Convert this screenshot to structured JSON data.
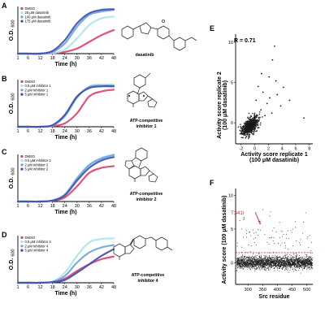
{
  "colors": {
    "dmso": "#d9406b",
    "low": "#a8e4ec",
    "mid": "#6ea3d8",
    "high": "#3c4fb0",
    "scatter_e": "#1a1a1a",
    "scatter_f": "#1a1a1a",
    "threshold": "#d23a3a",
    "arrow": "#c0392b"
  },
  "structures": [
    "dasatinib-structure-icon",
    "inhibitor-1-structure-icon",
    "inhibitor-2-structure-icon",
    "inhibitor-4-structure-icon"
  ],
  "panels": {
    "A": {
      "letter": "A",
      "compound_label": [
        "dasatinib"
      ]
    },
    "B": {
      "letter": "B",
      "compound_label": [
        "ATP-competitive",
        "inhibitor 1"
      ]
    },
    "C": {
      "letter": "C",
      "compound_label": [
        "ATP-competitive",
        "inhibitor 2"
      ]
    },
    "D": {
      "letter": "D",
      "compound_label": [
        "ATP-competitive",
        "inhibitor 4"
      ]
    },
    "E": {
      "letter": "E",
      "stat": "R = 0.71"
    },
    "F": {
      "letter": "F",
      "annotation": "T341I"
    }
  },
  "chart_data": [
    {
      "id": "A",
      "type": "line",
      "xlabel": "Time (h)",
      "ylabel": "O.D.",
      "ylabel_sub": "600",
      "xlim": [
        1,
        48
      ],
      "ylim": [
        0,
        1.4
      ],
      "xticks": [
        1,
        6,
        12,
        18,
        24,
        30,
        36,
        42,
        48
      ],
      "legend_placement": "top-left",
      "series": [
        {
          "name": "DMSO",
          "color_key": "dmso",
          "x": [
            1,
            6,
            12,
            18,
            24,
            30,
            36,
            42,
            48
          ],
          "y": [
            0,
            0,
            0,
            0.01,
            0.05,
            0.15,
            0.35,
            0.55,
            0.7
          ]
        },
        {
          "name": "25 μM dasatinib",
          "color_key": "low",
          "x": [
            1,
            6,
            12,
            18,
            24,
            30,
            36,
            42,
            48
          ],
          "y": [
            0,
            0,
            0,
            0.02,
            0.12,
            0.45,
            0.85,
            1.05,
            1.1
          ]
        },
        {
          "name": "100 μM dasatinib",
          "color_key": "mid",
          "x": [
            1,
            6,
            12,
            18,
            24,
            30,
            36,
            42,
            48
          ],
          "y": [
            0,
            0,
            0,
            0.05,
            0.3,
            0.8,
            1.15,
            1.25,
            1.3
          ]
        },
        {
          "name": "175 μM dasatinib",
          "color_key": "high",
          "x": [
            1,
            6,
            12,
            18,
            24,
            30,
            36,
            42,
            48
          ],
          "y": [
            0,
            0,
            0,
            0.08,
            0.4,
            0.9,
            1.2,
            1.3,
            1.32
          ]
        }
      ]
    },
    {
      "id": "B",
      "type": "line",
      "xlabel": "Time (h)",
      "ylabel": "O.D.",
      "ylabel_sub": "600",
      "xlim": [
        1,
        48
      ],
      "ylim": [
        0,
        1.4
      ],
      "xticks": [
        1,
        6,
        12,
        18,
        24,
        30,
        36,
        42,
        48
      ],
      "legend_placement": "top-left",
      "series": [
        {
          "name": "DMSO",
          "color_key": "dmso",
          "x": [
            1,
            6,
            12,
            18,
            24,
            30,
            36,
            42,
            48
          ],
          "y": [
            0,
            0,
            0,
            0.02,
            0.1,
            0.4,
            0.9,
            1.05,
            1.1
          ]
        },
        {
          "name": "0.5 μM inhibitor 1",
          "color_key": "low",
          "x": [
            1,
            6,
            12,
            18,
            24,
            30,
            36,
            42,
            48
          ],
          "y": [
            0,
            0,
            0,
            0.04,
            0.3,
            0.85,
            1.2,
            1.25,
            1.25
          ]
        },
        {
          "name": "2 μM inhibitor 1",
          "color_key": "mid",
          "x": [
            1,
            6,
            12,
            18,
            24,
            30,
            36,
            42,
            48
          ],
          "y": [
            0,
            0,
            0,
            0.04,
            0.32,
            0.88,
            1.18,
            1.22,
            1.22
          ]
        },
        {
          "name": "5 μM inhibitor 1",
          "color_key": "high",
          "x": [
            1,
            6,
            12,
            18,
            24,
            30,
            36,
            42,
            48
          ],
          "y": [
            0,
            0,
            0,
            0.05,
            0.35,
            0.9,
            1.15,
            1.2,
            1.2
          ]
        }
      ]
    },
    {
      "id": "C",
      "type": "line",
      "xlabel": "Time (h)",
      "ylabel": "O.D.",
      "ylabel_sub": "600",
      "xlim": [
        1,
        48
      ],
      "ylim": [
        0,
        1.4
      ],
      "xticks": [
        1,
        6,
        12,
        18,
        24,
        30,
        36,
        42,
        48
      ],
      "legend_placement": "top-left",
      "series": [
        {
          "name": "DMSO",
          "color_key": "dmso",
          "x": [
            1,
            6,
            12,
            18,
            24,
            30,
            36,
            42,
            48
          ],
          "y": [
            0,
            0,
            0,
            0.02,
            0.12,
            0.45,
            0.85,
            1.0,
            1.05
          ]
        },
        {
          "name": "0.5 μM inhibitor 2",
          "color_key": "low",
          "x": [
            1,
            6,
            12,
            18,
            24,
            30,
            36,
            42,
            48
          ],
          "y": [
            0,
            0,
            0,
            0.03,
            0.22,
            0.7,
            1.1,
            1.3,
            1.4
          ]
        },
        {
          "name": "2 μM inhibitor 2",
          "color_key": "mid",
          "x": [
            1,
            6,
            12,
            18,
            24,
            30,
            36,
            42,
            48
          ],
          "y": [
            0,
            0,
            0,
            0.03,
            0.2,
            0.68,
            1.08,
            1.28,
            1.38
          ]
        },
        {
          "name": "5 μM inhibitor 2",
          "color_key": "high",
          "x": [
            1,
            6,
            12,
            18,
            24,
            30,
            36,
            42,
            48
          ],
          "y": [
            0,
            0,
            0,
            0.03,
            0.18,
            0.62,
            1.0,
            1.22,
            1.32
          ]
        }
      ]
    },
    {
      "id": "D",
      "type": "line",
      "xlabel": "Time (h)",
      "ylabel": "O.D.",
      "ylabel_sub": "600",
      "xlim": [
        1,
        48
      ],
      "ylim": [
        0,
        1.4
      ],
      "xticks": [
        1,
        6,
        12,
        18,
        24,
        30,
        36,
        42,
        48
      ],
      "legend_placement": "top-left",
      "series": [
        {
          "name": "DMSO",
          "color_key": "dmso",
          "x": [
            1,
            6,
            12,
            18,
            24,
            30,
            36,
            42,
            48
          ],
          "y": [
            0,
            0,
            0,
            0.02,
            0.12,
            0.35,
            0.55,
            0.7,
            0.78
          ]
        },
        {
          "name": "0.5 μM inhibitor 4",
          "color_key": "low",
          "x": [
            1,
            6,
            12,
            18,
            24,
            30,
            36,
            42,
            48
          ],
          "y": [
            0,
            0,
            0,
            0.03,
            0.3,
            0.8,
            1.2,
            1.3,
            1.32
          ]
        },
        {
          "name": "2 μM inhibitor 4",
          "color_key": "mid",
          "x": [
            1,
            6,
            12,
            18,
            24,
            30,
            36,
            42,
            48
          ],
          "y": [
            0,
            0,
            0,
            0.03,
            0.2,
            0.6,
            0.9,
            1.05,
            1.12
          ]
        },
        {
          "name": "5 μM inhibitor 4",
          "color_key": "high",
          "x": [
            1,
            6,
            12,
            18,
            24,
            30,
            36,
            42,
            48
          ],
          "y": [
            0,
            0,
            0,
            0.02,
            0.08,
            0.3,
            0.55,
            0.8,
            1.0
          ]
        }
      ]
    },
    {
      "id": "E",
      "type": "scatter",
      "xlabel": "Activity score replicate 1",
      "xlabel2": "(100 μM dasatinib)",
      "ylabel": "Activity score replicate 2",
      "ylabel2": "(100 μM dasatinib)",
      "xlim": [
        -2.8,
        8.5
      ],
      "ylim": [
        -2.6,
        11
      ],
      "xticks": [
        -2,
        0,
        2,
        4,
        6,
        8
      ],
      "yticks": [
        0,
        5,
        10
      ],
      "grid": false,
      "n_points": 700,
      "cluster_center": [
        -0.7,
        -0.4
      ],
      "cluster_sd": [
        0.55,
        0.45
      ],
      "outliers": [
        [
          0.5,
          4.5
        ],
        [
          1.2,
          3.8
        ],
        [
          2.2,
          3.1
        ],
        [
          2.6,
          7.8
        ],
        [
          2.9,
          9.5
        ],
        [
          3.1,
          5.2
        ],
        [
          3.3,
          3.5
        ],
        [
          1.8,
          2.4
        ],
        [
          0.9,
          1.6
        ],
        [
          4.2,
          4.4
        ],
        [
          5.1,
          2.8
        ],
        [
          7.2,
          0.6
        ],
        [
          2.5,
          1.2
        ],
        [
          1.5,
          0.9
        ],
        [
          3.8,
          2.1
        ],
        [
          0.2,
          2.8
        ],
        [
          2.1,
          5.7
        ],
        [
          1.0,
          6.1
        ]
      ]
    },
    {
      "id": "F",
      "type": "scatter",
      "xlabel": "Src residue",
      "ylabel": "Activity score (100 μM dasatinib)",
      "xlim": [
        258,
        520
      ],
      "ylim": [
        -3.2,
        11
      ],
      "xticks": [
        300,
        350,
        400,
        450,
        500
      ],
      "yticks": [
        0,
        5,
        10
      ],
      "threshold": 1.5,
      "points_per_residue": 9,
      "grid": false,
      "highlight": {
        "label": "T341I",
        "x": 341,
        "y": 5.8
      }
    }
  ]
}
